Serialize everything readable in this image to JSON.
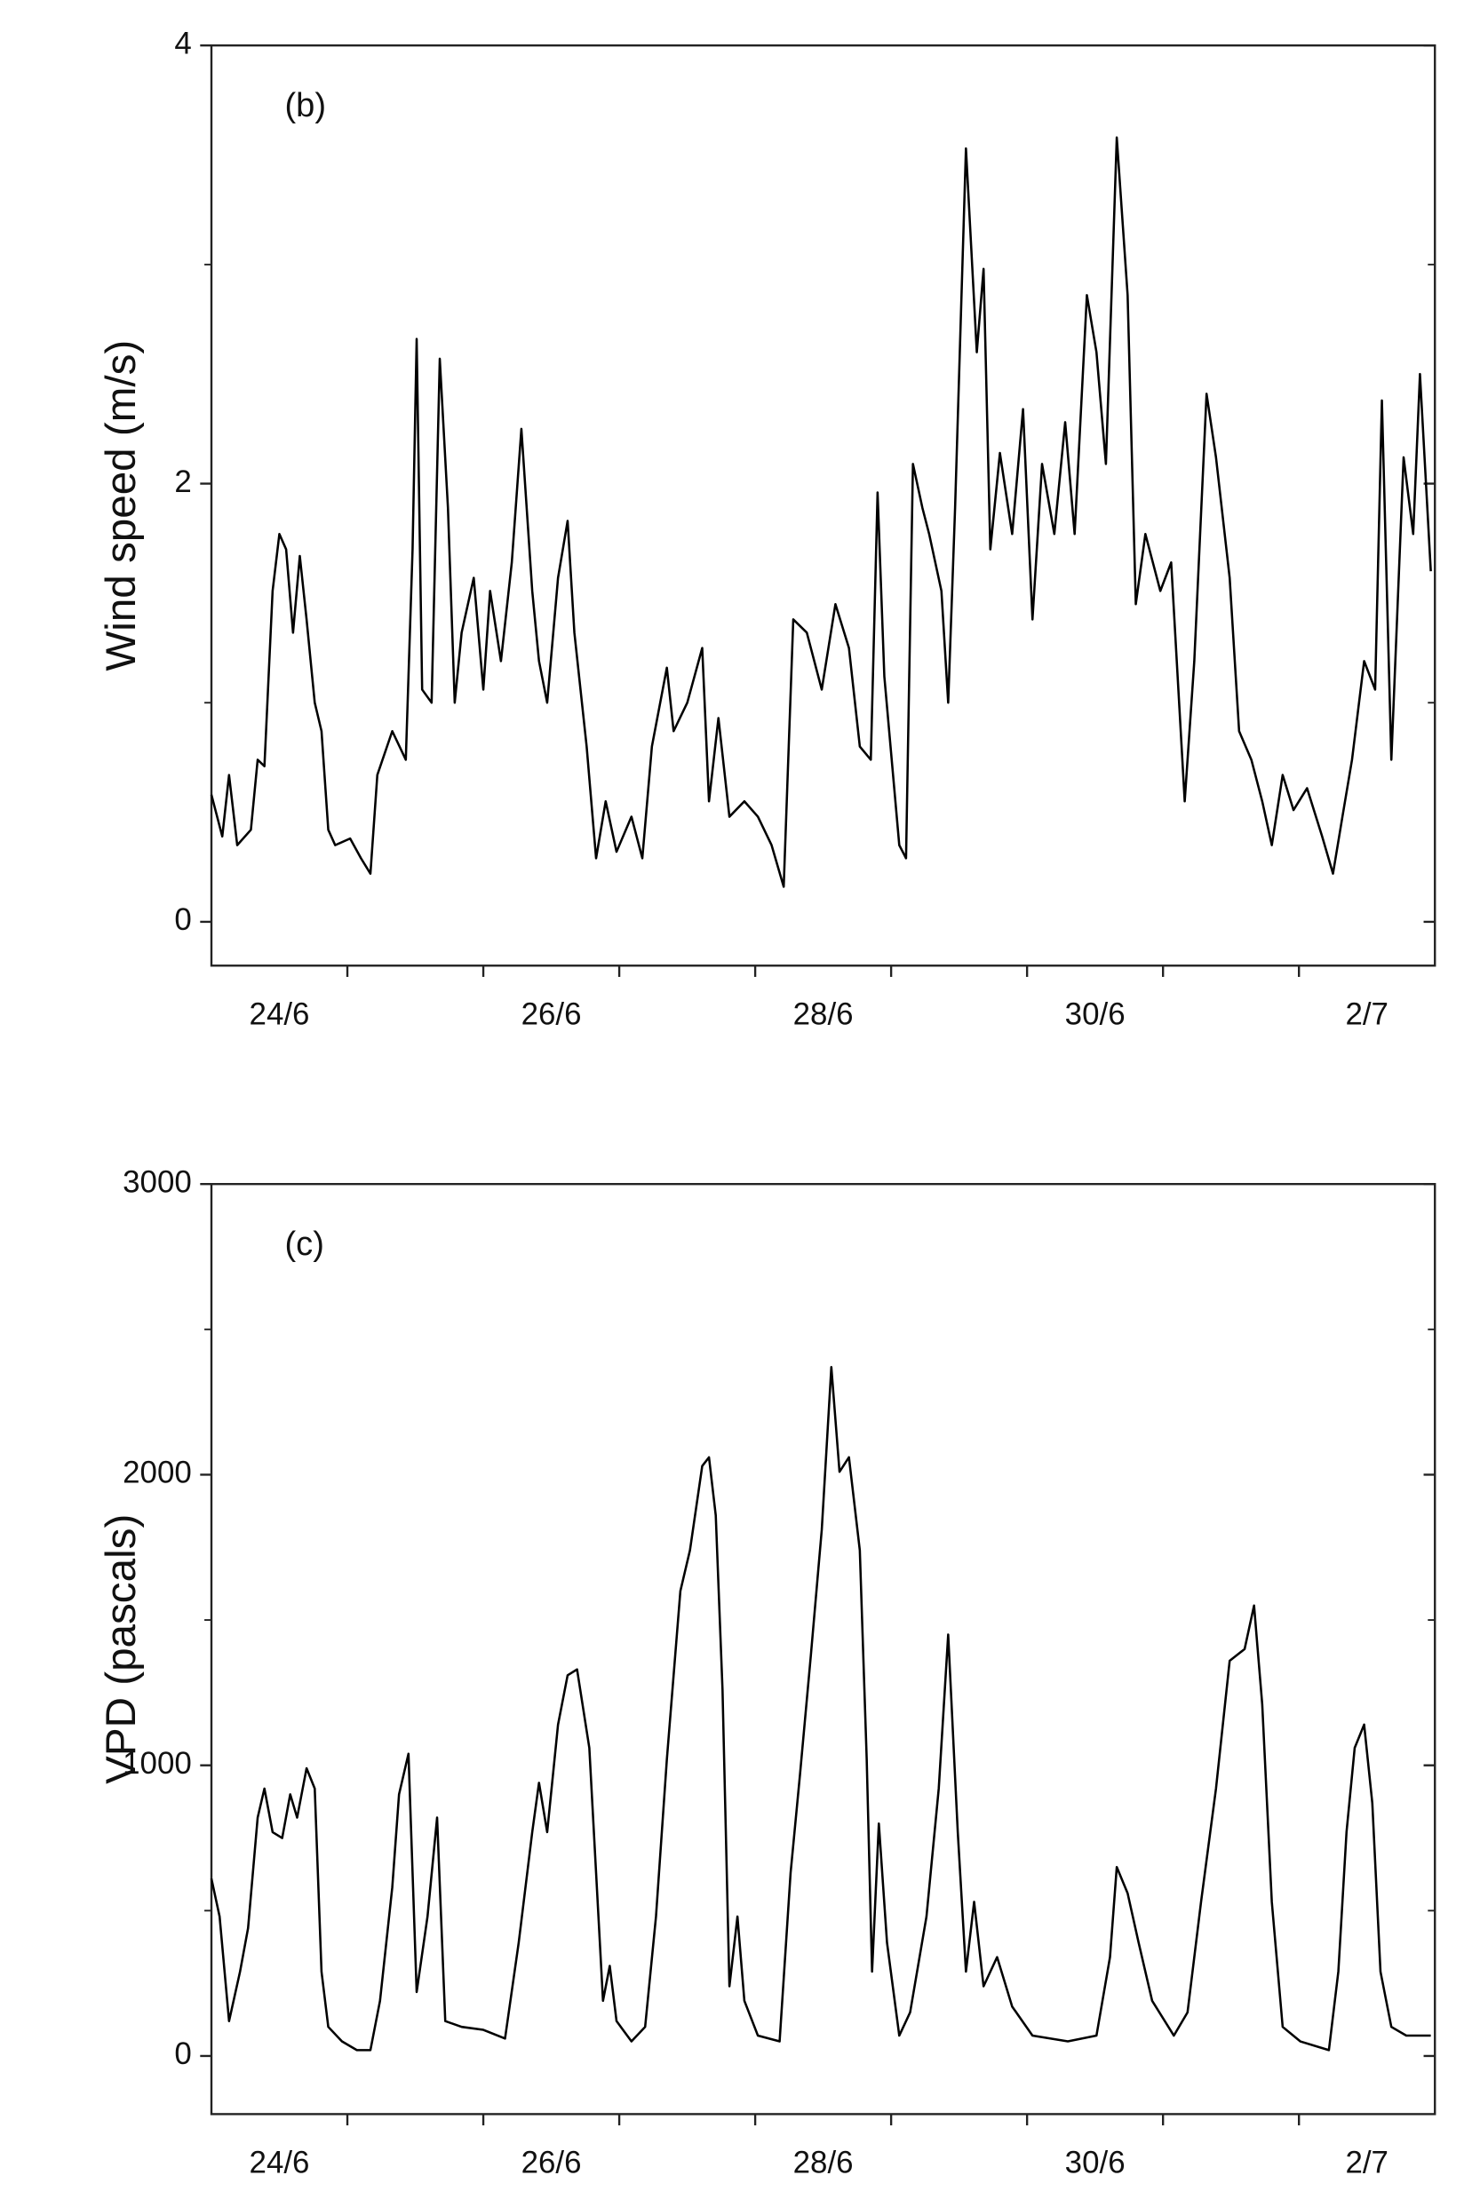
{
  "chart_data": [
    {
      "type": "line",
      "annotation": "(b)",
      "y_label": "Wind speed (m/s)",
      "color": "#000000",
      "xlim": [
        24,
        33
      ],
      "ylim": [
        -0.2,
        4
      ],
      "xticks": [
        {
          "value": 24.5,
          "label": "24/6"
        },
        {
          "value": 26.5,
          "label": "26/6"
        },
        {
          "value": 28.5,
          "label": "28/6"
        },
        {
          "value": 30.5,
          "label": "30/6"
        },
        {
          "value": 32.5,
          "label": "2/7"
        }
      ],
      "xminor_ticks": [
        25,
        26,
        27,
        28,
        29,
        30,
        31,
        32
      ],
      "yticks": [
        0,
        2,
        4
      ],
      "yminor_ticks": [
        1,
        3
      ],
      "x": [
        24.0,
        24.08,
        24.13,
        24.19,
        24.29,
        24.34,
        24.39,
        24.45,
        24.5,
        24.55,
        24.6,
        24.65,
        24.7,
        24.76,
        24.81,
        24.86,
        24.91,
        25.02,
        25.1,
        25.17,
        25.22,
        25.33,
        25.43,
        25.48,
        25.51,
        25.55,
        25.62,
        25.68,
        25.74,
        25.79,
        25.84,
        25.93,
        26.0,
        26.05,
        26.13,
        26.21,
        26.28,
        26.36,
        26.41,
        26.47,
        26.55,
        26.62,
        26.67,
        26.76,
        26.83,
        26.9,
        26.98,
        27.09,
        27.17,
        27.24,
        27.35,
        27.4,
        27.5,
        27.61,
        27.66,
        27.73,
        27.81,
        27.92,
        28.02,
        28.12,
        28.21,
        28.28,
        28.38,
        28.49,
        28.59,
        28.69,
        28.77,
        28.85,
        28.9,
        28.95,
        29.06,
        29.11,
        29.16,
        29.23,
        29.28,
        29.37,
        29.42,
        29.47,
        29.55,
        29.63,
        29.68,
        29.73,
        29.8,
        29.89,
        29.97,
        30.04,
        30.11,
        30.2,
        30.28,
        30.35,
        30.44,
        30.51,
        30.58,
        30.66,
        30.74,
        30.8,
        30.87,
        30.98,
        31.06,
        31.16,
        31.23,
        31.32,
        31.39,
        31.49,
        31.56,
        31.65,
        31.73,
        31.8,
        31.88,
        31.96,
        32.06,
        32.17,
        32.25,
        32.32,
        32.39,
        32.48,
        32.56,
        32.61,
        32.68,
        32.77,
        32.84,
        32.89,
        32.97
      ],
      "values": [
        0.58,
        0.39,
        0.67,
        0.35,
        0.42,
        0.74,
        0.71,
        1.51,
        1.77,
        1.7,
        1.32,
        1.67,
        1.38,
        1.0,
        0.87,
        0.42,
        0.35,
        0.38,
        0.29,
        0.22,
        0.67,
        0.87,
        0.74,
        1.7,
        2.66,
        1.06,
        1.0,
        2.57,
        1.89,
        1.0,
        1.32,
        1.57,
        1.06,
        1.51,
        1.19,
        1.64,
        2.25,
        1.51,
        1.19,
        1.0,
        1.57,
        1.83,
        1.32,
        0.8,
        0.29,
        0.55,
        0.32,
        0.48,
        0.29,
        0.8,
        1.16,
        0.87,
        1.0,
        1.25,
        0.55,
        0.93,
        0.48,
        0.55,
        0.48,
        0.35,
        0.16,
        1.38,
        1.32,
        1.06,
        1.45,
        1.25,
        0.8,
        0.74,
        1.96,
        1.12,
        0.35,
        0.29,
        2.09,
        1.89,
        1.77,
        1.51,
        1.0,
        1.89,
        3.53,
        2.6,
        2.98,
        1.7,
        2.14,
        1.77,
        2.34,
        1.38,
        2.09,
        1.77,
        2.28,
        1.77,
        2.86,
        2.6,
        2.09,
        3.58,
        2.86,
        1.45,
        1.77,
        1.51,
        1.64,
        0.55,
        1.19,
        2.41,
        2.12,
        1.57,
        0.87,
        0.74,
        0.55,
        0.35,
        0.67,
        0.51,
        0.61,
        0.39,
        0.22,
        0.48,
        0.74,
        1.19,
        1.06,
        2.38,
        0.74,
        2.12,
        1.77,
        2.5,
        1.6
      ]
    },
    {
      "type": "line",
      "annotation": "(c)",
      "y_label": "VPD (pascals)",
      "color": "#000000",
      "xlim": [
        24,
        33
      ],
      "ylim": [
        -200,
        3000
      ],
      "xticks": [
        {
          "value": 24.5,
          "label": "24/6"
        },
        {
          "value": 26.5,
          "label": "26/6"
        },
        {
          "value": 28.5,
          "label": "28/6"
        },
        {
          "value": 30.5,
          "label": "30/6"
        },
        {
          "value": 32.5,
          "label": "2/7"
        }
      ],
      "xminor_ticks": [
        25,
        26,
        27,
        28,
        29,
        30,
        31,
        32
      ],
      "yticks": [
        0,
        1000,
        2000,
        3000
      ],
      "yminor_ticks": [
        500,
        1500,
        2500
      ],
      "x": [
        24.0,
        24.06,
        24.13,
        24.21,
        24.27,
        24.34,
        24.39,
        24.45,
        24.52,
        24.58,
        24.63,
        24.7,
        24.76,
        24.81,
        24.86,
        24.96,
        25.07,
        25.17,
        25.24,
        25.33,
        25.38,
        25.45,
        25.51,
        25.59,
        25.66,
        25.72,
        25.84,
        26.0,
        26.16,
        26.26,
        26.36,
        26.41,
        26.47,
        26.55,
        26.62,
        26.69,
        26.78,
        26.83,
        26.88,
        26.93,
        26.98,
        27.09,
        27.19,
        27.27,
        27.35,
        27.45,
        27.52,
        27.61,
        27.66,
        27.71,
        27.76,
        27.81,
        27.87,
        27.92,
        28.02,
        28.18,
        28.26,
        28.33,
        28.41,
        28.49,
        28.56,
        28.62,
        28.69,
        28.77,
        28.82,
        28.86,
        28.91,
        28.97,
        29.06,
        29.14,
        29.26,
        29.35,
        29.42,
        29.49,
        29.55,
        29.61,
        29.68,
        29.78,
        29.89,
        30.04,
        30.3,
        30.51,
        30.61,
        30.66,
        30.74,
        30.82,
        30.92,
        31.08,
        31.18,
        31.28,
        31.39,
        31.49,
        31.6,
        31.67,
        31.73,
        31.8,
        31.88,
        32.01,
        32.22,
        32.29,
        32.35,
        32.41,
        32.48,
        32.54,
        32.6,
        32.68,
        32.79,
        32.97
      ],
      "values": [
        610,
        480,
        120,
        290,
        440,
        820,
        920,
        770,
        750,
        900,
        820,
        990,
        920,
        290,
        100,
        50,
        20,
        20,
        190,
        580,
        900,
        1040,
        220,
        480,
        820,
        120,
        100,
        90,
        60,
        390,
        770,
        940,
        770,
        1140,
        1310,
        1330,
        1060,
        630,
        190,
        310,
        120,
        50,
        100,
        480,
        1020,
        1600,
        1740,
        2030,
        2060,
        1860,
        1260,
        240,
        480,
        190,
        70,
        50,
        630,
        970,
        1380,
        1810,
        2370,
        2010,
        2060,
        1740,
        1020,
        290,
        800,
        390,
        70,
        150,
        480,
        920,
        1450,
        770,
        290,
        530,
        240,
        340,
        170,
        70,
        50,
        70,
        340,
        650,
        560,
        390,
        190,
        70,
        150,
        530,
        920,
        1360,
        1400,
        1550,
        1210,
        530,
        100,
        50,
        20,
        290,
        770,
        1060,
        1140,
        870,
        290,
        100,
        70,
        70
      ]
    }
  ]
}
